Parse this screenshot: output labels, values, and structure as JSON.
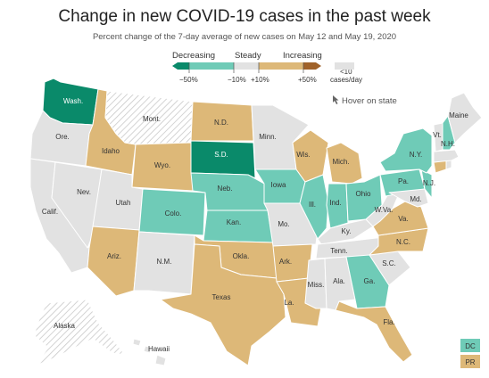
{
  "header": {
    "title": "Change in new COVID-19 cases in the past week",
    "subtitle": "Percent change of the 7-day average of new cases on May 12 and May 19, 2020"
  },
  "legend": {
    "decreasing": "Decreasing",
    "steady": "Steady",
    "increasing": "Increasing",
    "ticks": [
      "−50%",
      "−10%",
      "+10%",
      "+50%"
    ],
    "small_cases": "<10 cases/day",
    "small_cases_line1": "<10",
    "small_cases_line2": "cases/day",
    "colors": {
      "strong_decrease": "#0a8a6a",
      "decrease": "#6fcbb7",
      "steady": "#e2e2e2",
      "increase": "#ddb878",
      "strong_increase": "#a0622a",
      "small": "#e2e2e2"
    }
  },
  "hover_hint": "Hover on state",
  "states": {
    "wash": "Wash.",
    "ore": "Ore.",
    "calif": "Calif.",
    "nev": "Nev.",
    "idaho": "Idaho",
    "mont": "Mont.",
    "wyo": "Wyo.",
    "utah": "Utah",
    "ariz": "Ariz.",
    "colo": "Colo.",
    "nm": "N.M.",
    "nd": "N.D.",
    "sd": "S.D.",
    "neb": "Neb.",
    "kan": "Kan.",
    "okla": "Okla.",
    "texas": "Texas",
    "minn": "Minn.",
    "iowa": "Iowa",
    "mo": "Mo.",
    "ark": "Ark.",
    "la": "La.",
    "wis": "Wis.",
    "ill": "Ill.",
    "mich": "Mich.",
    "ind": "Ind.",
    "ohio": "Ohio",
    "ky": "Ky.",
    "tenn": "Tenn.",
    "miss": "Miss.",
    "ala": "Ala.",
    "ga": "Ga.",
    "fla": "Fla.",
    "sc": "S.C.",
    "nc": "N.C.",
    "va": "Va.",
    "wva": "W.Va.",
    "pa": "Pa.",
    "ny": "N.Y.",
    "md": "Md.",
    "nj": "N.J.",
    "vt": "Vt.",
    "nh": "N.H.",
    "maine": "Maine",
    "alaska": "Alaska",
    "hawaii": "Hawaii"
  },
  "territories": {
    "dc": "DC",
    "pr": "PR"
  }
}
